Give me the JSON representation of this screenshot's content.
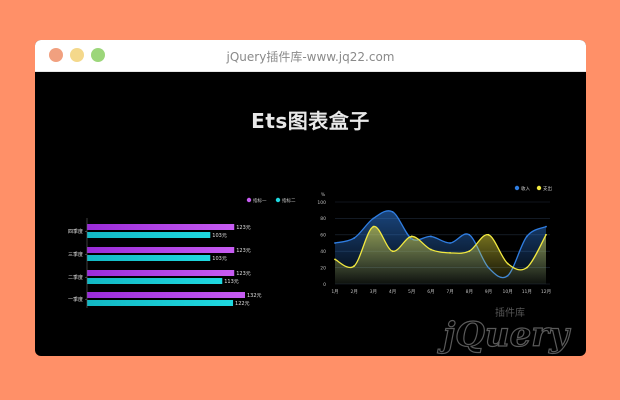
{
  "window": {
    "title": "jQuery插件库-www.jq22.com"
  },
  "page": {
    "heading": "Ets图表盒子"
  },
  "colors": {
    "purple": "#C75CF2",
    "cyan": "#1FD8E0",
    "blue": "#2F7DE1",
    "yellow": "#F2E940"
  },
  "chart_data": [
    {
      "type": "bar",
      "orientation": "horizontal",
      "categories": [
        "一季度",
        "二季度",
        "三季度",
        "四季度"
      ],
      "series": [
        {
          "name": "指标一",
          "values": [
            132,
            123,
            123,
            123
          ],
          "labels": [
            "132元",
            "123元",
            "123元",
            "123元"
          ]
        },
        {
          "name": "指标二",
          "values": [
            122,
            113,
            103,
            103
          ],
          "labels": [
            "122元",
            "113元",
            "103元",
            "103元"
          ]
        }
      ],
      "legend": "top-right",
      "grid": false
    },
    {
      "type": "area",
      "categories": [
        "1月",
        "2月",
        "3月",
        "4月",
        "5月",
        "6月",
        "7月",
        "8月",
        "9月",
        "10月",
        "11月",
        "12月"
      ],
      "series": [
        {
          "name": "收入",
          "values": [
            50,
            56,
            80,
            88,
            55,
            58,
            50,
            60,
            20,
            10,
            58,
            70
          ]
        },
        {
          "name": "支出",
          "values": [
            30,
            22,
            70,
            40,
            58,
            42,
            38,
            40,
            60,
            25,
            20,
            60
          ]
        }
      ],
      "ylabel": "%",
      "ylim": [
        0,
        100
      ],
      "yticks": [
        0,
        20,
        40,
        60,
        80,
        100
      ],
      "legend": "top-right",
      "grid": true
    }
  ],
  "watermark": {
    "text": "jQuery",
    "subtext": "插件库"
  }
}
